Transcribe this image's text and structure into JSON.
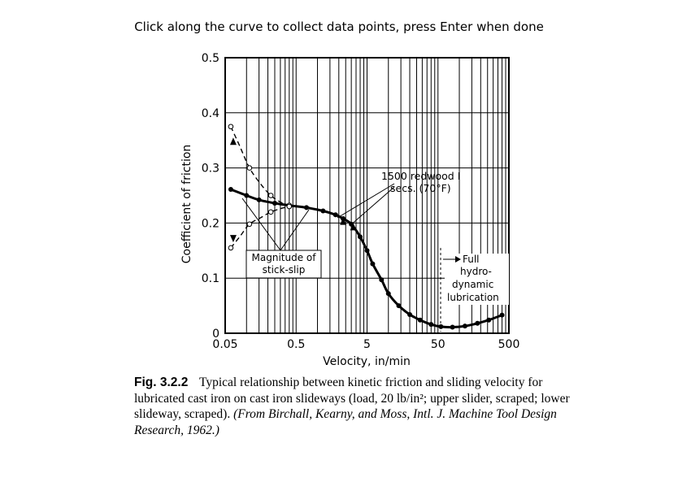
{
  "instruction": "Click along the curve to collect data points, press Enter when done",
  "chart_data": {
    "type": "line",
    "xlabel": "Velocity, in/min",
    "ylabel": "Coefficient of friction",
    "x_scale": "log",
    "xlim": [
      0.05,
      500
    ],
    "ylim": [
      0,
      0.5
    ],
    "x_ticks": [
      "0.05",
      "0.5",
      "5",
      "50",
      "500"
    ],
    "y_ticks": [
      "0",
      "0.1",
      "0.2",
      "0.3",
      "0.4",
      "0.5"
    ],
    "grid": true,
    "annotations": {
      "lubricant": [
        "1500 redwood I",
        "secs. (70°F)"
      ],
      "stick_slip": [
        "Magnitude of",
        "stick-slip"
      ],
      "full_lub": [
        "Full",
        "hydro-",
        "dynamic",
        "lubrication"
      ]
    },
    "series": [
      {
        "style": "solid",
        "x": [
          0.06,
          0.1,
          0.15,
          0.25,
          0.4,
          0.7,
          1.2,
          1.8,
          2.3,
          3,
          4,
          5,
          6,
          8,
          10,
          14,
          20,
          28,
          40,
          55,
          80,
          120,
          180,
          260,
          400
        ],
        "y": [
          0.261,
          0.25,
          0.242,
          0.236,
          0.232,
          0.228,
          0.222,
          0.215,
          0.208,
          0.198,
          0.175,
          0.15,
          0.126,
          0.097,
          0.072,
          0.05,
          0.034,
          0.024,
          0.016,
          0.012,
          0.011,
          0.013,
          0.018,
          0.024,
          0.033
        ]
      },
      {
        "style": "dashed-upper",
        "x": [
          0.06,
          0.08,
          0.11,
          0.16,
          0.22,
          0.3,
          0.4
        ],
        "y": [
          0.375,
          0.34,
          0.3,
          0.27,
          0.25,
          0.238,
          0.232
        ]
      },
      {
        "style": "dashed-lower",
        "x": [
          0.06,
          0.08,
          0.11,
          0.16,
          0.22,
          0.3,
          0.4
        ],
        "y": [
          0.155,
          0.175,
          0.198,
          0.21,
          0.22,
          0.226,
          0.23
        ]
      }
    ]
  },
  "caption": {
    "fig": "Fig. 3.2.2",
    "text": "Typical relationship between kinetic friction and sliding velocity for lubricated cast iron on cast iron slideways (load, 20 lb/in²; upper slider, scraped; lower slideway, scraped).",
    "credit": "(From Birchall, Kearny, and Moss, Intl. J. Machine Tool Design Research, 1962.)"
  }
}
